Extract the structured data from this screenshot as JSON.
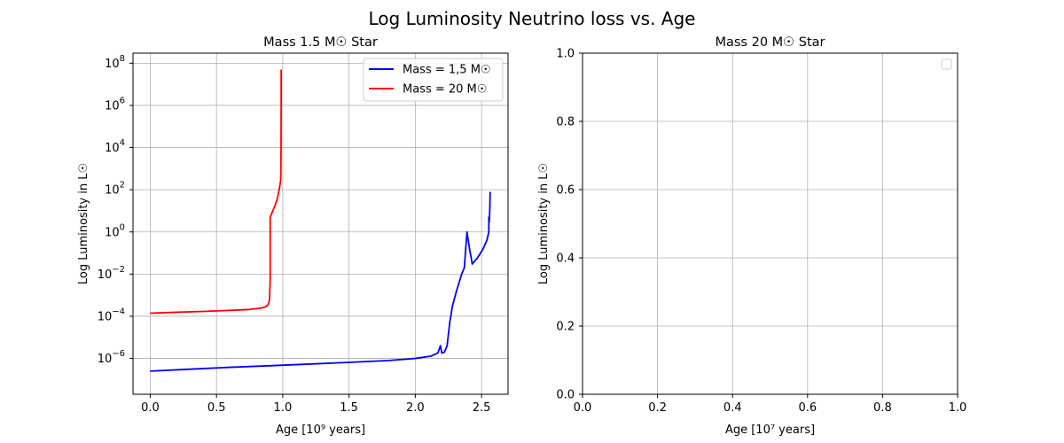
{
  "suptitle": "Log Luminosity Neutrino loss vs. Age",
  "chart_data": [
    {
      "type": "line",
      "title": "Mass 1.5 M☉ Star",
      "xlabel": "Age [10⁹ years]",
      "ylabel": "Log Luminosity in L☉",
      "xlim": [
        -0.13,
        2.7
      ],
      "ylim": [
        2e-08,
        300000000.0
      ],
      "yscale": "log",
      "grid": true,
      "legend_placement": "top-right",
      "xticks": [
        0,
        0.5,
        1,
        1.5,
        2,
        2.5
      ],
      "xtick_labels": [
        "0.0",
        "0.5",
        "1.0",
        "1.5",
        "2.0",
        "2.5"
      ],
      "yticks": [
        1e-06,
        0.0001,
        0.01,
        1,
        100.0,
        10000.0,
        1000000.0,
        100000000.0
      ],
      "ytick_labels": [
        {
          "base": "10",
          "exp": "−6"
        },
        {
          "base": "10",
          "exp": "−4"
        },
        {
          "base": "10",
          "exp": "−2"
        },
        {
          "base": "10",
          "exp": "0"
        },
        {
          "base": "10",
          "exp": "2"
        },
        {
          "base": "10",
          "exp": "4"
        },
        {
          "base": "10",
          "exp": "6"
        },
        {
          "base": "10",
          "exp": "8"
        }
      ],
      "series": [
        {
          "name": "Mass = 1,5 M☉",
          "color": "#0000ff",
          "points": [
            [
              0,
              2.5e-07
            ],
            [
              0.3,
              3.1e-07
            ],
            [
              0.6,
              3.8e-07
            ],
            [
              0.9,
              4.5e-07
            ],
            [
              1.2,
              5.4e-07
            ],
            [
              1.5,
              6.5e-07
            ],
            [
              1.8,
              8e-07
            ],
            [
              2.0,
              1e-06
            ],
            [
              2.12,
              1.3e-06
            ],
            [
              2.17,
              1.8e-06
            ],
            [
              2.19,
              4e-06
            ],
            [
              2.2,
              1.8e-06
            ],
            [
              2.22,
              2e-06
            ],
            [
              2.24,
              4e-06
            ],
            [
              2.26,
              5e-05
            ],
            [
              2.28,
              0.0003
            ],
            [
              2.31,
              0.0015
            ],
            [
              2.35,
              0.01
            ],
            [
              2.37,
              0.02
            ],
            [
              2.39,
              1.0
            ],
            [
              2.41,
              0.15
            ],
            [
              2.43,
              0.03
            ],
            [
              2.47,
              0.06
            ],
            [
              2.51,
              0.15
            ],
            [
              2.54,
              0.4
            ],
            [
              2.555,
              1.0
            ],
            [
              2.555,
              5.0
            ],
            [
              2.558,
              3.0
            ],
            [
              2.562,
              10
            ],
            [
              2.565,
              80
            ]
          ]
        },
        {
          "name": "Mass = 20 M☉",
          "color": "#ff0000",
          "points": [
            [
              0,
              0.00014
            ],
            [
              0.2,
              0.000155
            ],
            [
              0.4,
              0.00017
            ],
            [
              0.6,
              0.00019
            ],
            [
              0.75,
              0.00021
            ],
            [
              0.83,
              0.00024
            ],
            [
              0.87,
              0.00028
            ],
            [
              0.89,
              0.00035
            ],
            [
              0.9,
              0.0006
            ],
            [
              0.905,
              0.005
            ],
            [
              0.905,
              5.0
            ],
            [
              0.925,
              10
            ],
            [
              0.945,
              20
            ],
            [
              0.96,
              40
            ],
            [
              0.975,
              120
            ],
            [
              0.985,
              300
            ],
            [
              0.987,
              5000.0
            ],
            [
              0.988,
              1000000.0
            ],
            [
              0.988,
              50000000.0
            ]
          ]
        }
      ]
    },
    {
      "type": "line",
      "title": "Mass 20 M☉ Star",
      "xlabel": "Age [10⁷ years]",
      "ylabel": "Log Luminosity in L☉",
      "xlim": [
        0,
        1
      ],
      "ylim": [
        0,
        1
      ],
      "grid": true,
      "legend_placement": "top-right",
      "legend_entries": [],
      "xticks": [
        0,
        0.2,
        0.4,
        0.6,
        0.8,
        1.0
      ],
      "xtick_labels": [
        "0.0",
        "0.2",
        "0.4",
        "0.6",
        "0.8",
        "1.0"
      ],
      "yticks": [
        0,
        0.2,
        0.4,
        0.6,
        0.8,
        1.0
      ],
      "ytick_labels": [
        "0.0",
        "0.2",
        "0.4",
        "0.6",
        "0.8",
        "1.0"
      ],
      "series": []
    }
  ]
}
